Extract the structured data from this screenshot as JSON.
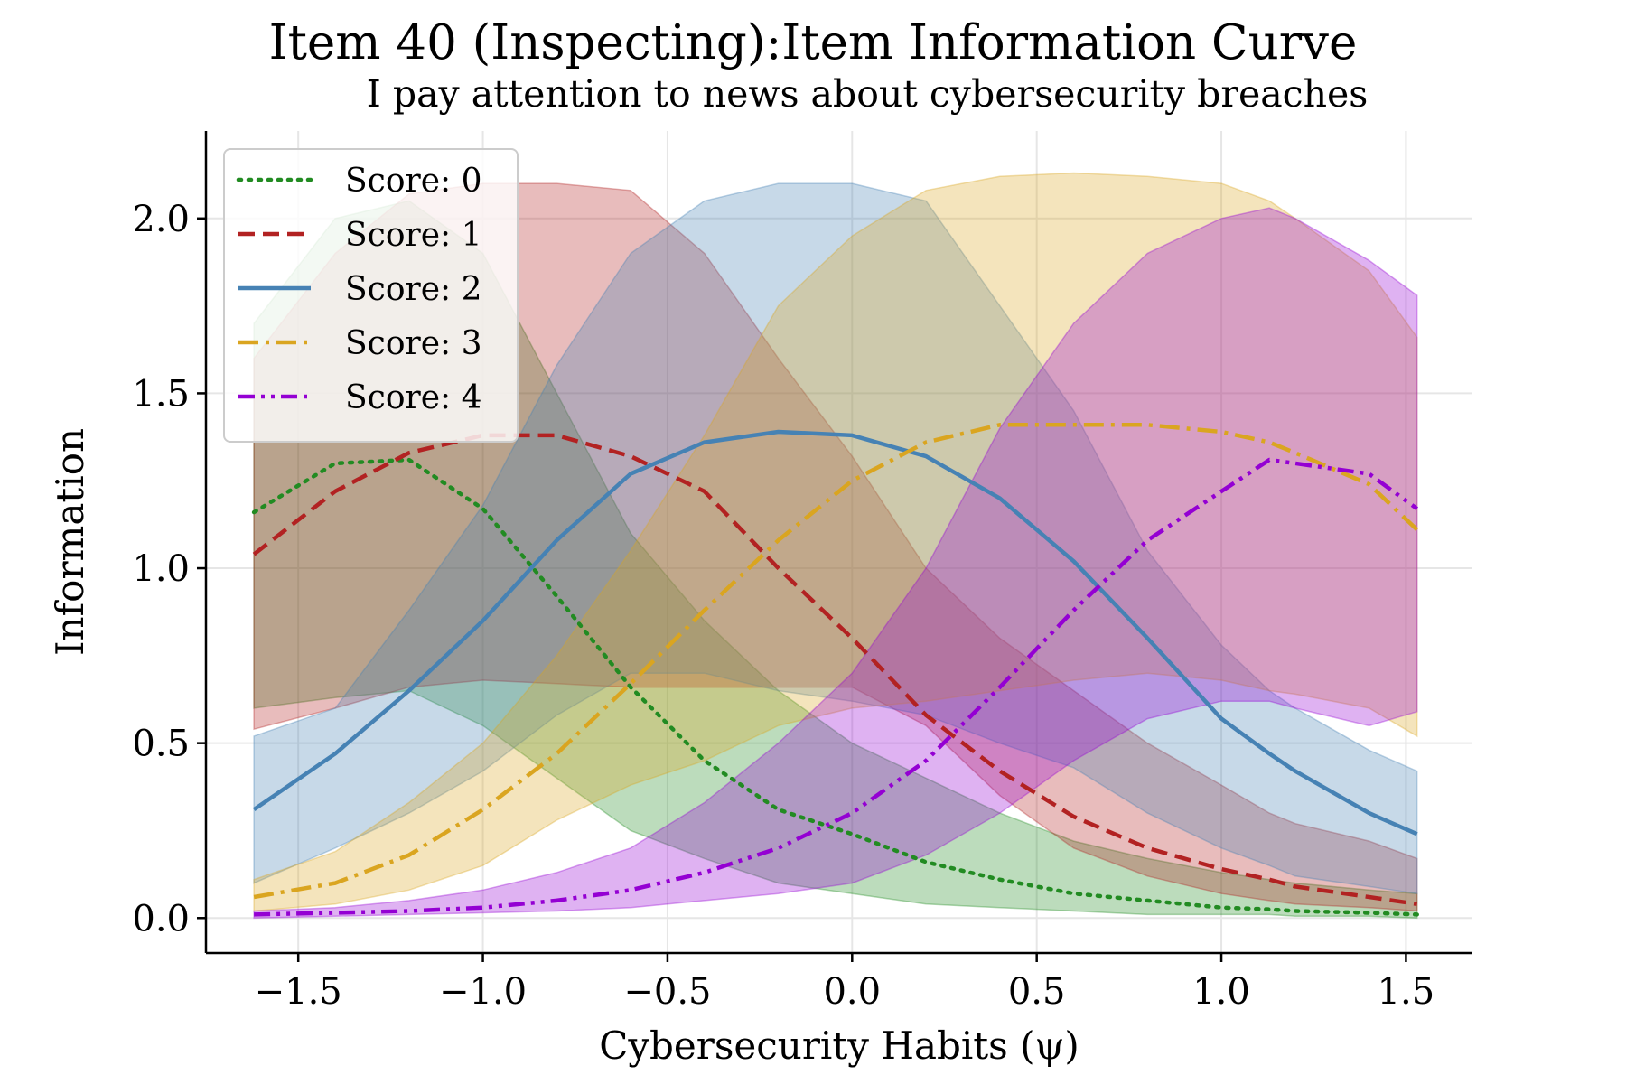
{
  "chart_data": {
    "type": "line",
    "title": "Item 40 (Inspecting):Item Information Curve",
    "subtitle": "I pay attention to news about cybersecurity breaches",
    "xlabel": "Cybersecurity Habits (ψ)",
    "ylabel": "Information",
    "xlim": [
      -1.75,
      1.68
    ],
    "ylim": [
      -0.1,
      2.25
    ],
    "xticks": [
      -1.5,
      -1.0,
      -0.5,
      0.0,
      0.5,
      1.0,
      1.5
    ],
    "xtick_labels": [
      "−1.5",
      "−1.0",
      "−0.5",
      "0.0",
      "0.5",
      "1.0",
      "1.5"
    ],
    "yticks": [
      0.0,
      0.5,
      1.0,
      1.5,
      2.0
    ],
    "ytick_labels": [
      "0.0",
      "0.5",
      "1.0",
      "1.5",
      "2.0"
    ],
    "grid": true,
    "legend_position": "upper-left",
    "x": [
      -1.62,
      -1.4,
      -1.2,
      -1.0,
      -0.8,
      -0.6,
      -0.4,
      -0.2,
      0.0,
      0.2,
      0.4,
      0.6,
      0.8,
      1.0,
      1.13,
      1.2,
      1.4,
      1.53
    ],
    "series": [
      {
        "name": "Score: 0",
        "color": "#228b22",
        "dash": "dotted",
        "values": [
          1.16,
          1.3,
          1.31,
          1.17,
          0.92,
          0.66,
          0.45,
          0.31,
          0.24,
          0.16,
          0.11,
          0.07,
          0.05,
          0.03,
          0.025,
          0.02,
          0.015,
          0.01
        ],
        "band_upper": [
          1.7,
          2.0,
          2.05,
          1.9,
          1.5,
          1.1,
          0.85,
          0.65,
          0.5,
          0.4,
          0.3,
          0.22,
          0.17,
          0.13,
          0.11,
          0.1,
          0.08,
          0.07
        ],
        "band_lower": [
          0.6,
          0.63,
          0.65,
          0.55,
          0.4,
          0.25,
          0.17,
          0.1,
          0.07,
          0.04,
          0.03,
          0.02,
          0.01,
          0.01,
          0.01,
          0.005,
          0.005,
          0.0
        ]
      },
      {
        "name": "Score: 1",
        "color": "#b22222",
        "dash": "dashed",
        "values": [
          1.04,
          1.22,
          1.33,
          1.38,
          1.38,
          1.32,
          1.22,
          1.0,
          0.8,
          0.58,
          0.42,
          0.29,
          0.2,
          0.14,
          0.11,
          0.09,
          0.06,
          0.04
        ],
        "band_upper": [
          1.6,
          1.9,
          2.07,
          2.1,
          2.1,
          2.08,
          1.9,
          1.6,
          1.32,
          1.0,
          0.8,
          0.65,
          0.5,
          0.38,
          0.3,
          0.27,
          0.22,
          0.17
        ],
        "band_lower": [
          0.54,
          0.6,
          0.66,
          0.68,
          0.67,
          0.66,
          0.66,
          0.66,
          0.66,
          0.55,
          0.35,
          0.2,
          0.12,
          0.07,
          0.05,
          0.04,
          0.03,
          0.02
        ]
      },
      {
        "name": "Score: 2",
        "color": "#4682b4",
        "dash": "solid",
        "values": [
          0.31,
          0.47,
          0.65,
          0.85,
          1.08,
          1.27,
          1.36,
          1.39,
          1.38,
          1.32,
          1.2,
          1.02,
          0.8,
          0.57,
          0.47,
          0.42,
          0.3,
          0.24
        ],
        "band_upper": [
          0.52,
          0.6,
          0.88,
          1.18,
          1.58,
          1.9,
          2.05,
          2.1,
          2.1,
          2.05,
          1.75,
          1.45,
          1.05,
          0.78,
          0.65,
          0.6,
          0.48,
          0.42
        ],
        "band_lower": [
          0.1,
          0.2,
          0.3,
          0.42,
          0.58,
          0.7,
          0.7,
          0.65,
          0.62,
          0.58,
          0.5,
          0.43,
          0.3,
          0.2,
          0.15,
          0.12,
          0.09,
          0.07
        ]
      },
      {
        "name": "Score: 3",
        "color": "#daa520",
        "dash": "dashdot",
        "values": [
          0.06,
          0.1,
          0.18,
          0.31,
          0.47,
          0.67,
          0.88,
          1.08,
          1.25,
          1.36,
          1.41,
          1.41,
          1.41,
          1.39,
          1.36,
          1.33,
          1.24,
          1.11
        ],
        "band_upper": [
          0.11,
          0.19,
          0.33,
          0.5,
          0.75,
          1.05,
          1.38,
          1.75,
          1.95,
          2.08,
          2.12,
          2.13,
          2.12,
          2.1,
          2.05,
          2.0,
          1.85,
          1.66
        ],
        "band_lower": [
          0.02,
          0.04,
          0.08,
          0.15,
          0.28,
          0.38,
          0.45,
          0.55,
          0.6,
          0.62,
          0.65,
          0.68,
          0.7,
          0.68,
          0.65,
          0.64,
          0.6,
          0.52
        ]
      },
      {
        "name": "Score: 4",
        "color": "#9400d3",
        "dash": "dashdotdot",
        "values": [
          0.01,
          0.015,
          0.02,
          0.03,
          0.05,
          0.08,
          0.13,
          0.2,
          0.3,
          0.45,
          0.66,
          0.88,
          1.08,
          1.22,
          1.31,
          1.3,
          1.27,
          1.17
        ],
        "band_upper": [
          0.02,
          0.03,
          0.05,
          0.08,
          0.13,
          0.2,
          0.33,
          0.5,
          0.7,
          1.0,
          1.4,
          1.7,
          1.9,
          2.0,
          2.03,
          2.0,
          1.88,
          1.78
        ],
        "band_lower": [
          0.0,
          0.005,
          0.01,
          0.015,
          0.02,
          0.03,
          0.05,
          0.07,
          0.1,
          0.18,
          0.3,
          0.45,
          0.57,
          0.62,
          0.62,
          0.6,
          0.55,
          0.59
        ]
      }
    ]
  }
}
